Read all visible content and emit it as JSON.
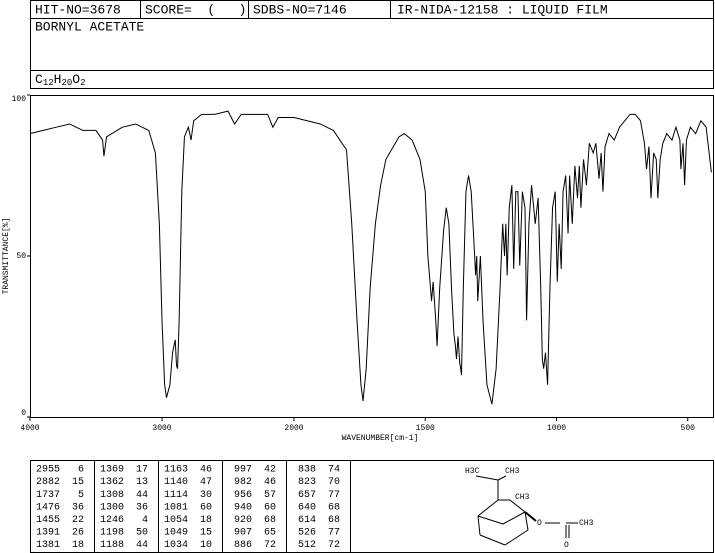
{
  "header": {
    "hit_no": "HIT-NO=3678",
    "score": "SCORE=  (   )",
    "sdbs_no": "SDBS-NO=7146",
    "method": "IR-NIDA-12158 : LIQUID FILM",
    "name": "BORNYL ACETATE",
    "formula": "C12H20O2"
  },
  "chart_data": {
    "type": "line",
    "xlabel": "WAVENUMBER[cm-1]",
    "ylabel": "TRANSMITTANCE[%]",
    "color": "#000000",
    "xlim": [
      4000,
      400
    ],
    "x_break": 2000,
    "xticks": [
      4000,
      3000,
      2000,
      1500,
      1000,
      500
    ],
    "ylim": [
      0,
      100
    ],
    "yticks": [
      0,
      50,
      100
    ],
    "grid": false,
    "x": [
      4000,
      3900,
      3800,
      3700,
      3600,
      3500,
      3450,
      3440,
      3420,
      3300,
      3200,
      3100,
      3050,
      3020,
      3000,
      2980,
      2966,
      2940,
      2920,
      2900,
      2890,
      2882,
      2870,
      2850,
      2830,
      2800,
      2780,
      2760,
      2700,
      2600,
      2500,
      2450,
      2400,
      2300,
      2200,
      2160,
      2120,
      2000,
      1900,
      1850,
      1800,
      1780,
      1760,
      1745,
      1737,
      1725,
      1710,
      1690,
      1670,
      1650,
      1600,
      1580,
      1550,
      1520,
      1500,
      1490,
      1476,
      1470,
      1460,
      1455,
      1445,
      1430,
      1420,
      1410,
      1400,
      1391,
      1385,
      1381,
      1375,
      1369,
      1365,
      1362,
      1355,
      1345,
      1335,
      1325,
      1315,
      1308,
      1304,
      1300,
      1290,
      1280,
      1265,
      1246,
      1230,
      1215,
      1205,
      1198,
      1193,
      1188,
      1180,
      1170,
      1163,
      1155,
      1147,
      1140,
      1130,
      1120,
      1114,
      1105,
      1095,
      1081,
      1070,
      1060,
      1054,
      1049,
      1042,
      1034,
      1025,
      1015,
      1005,
      997,
      990,
      982,
      975,
      965,
      956,
      950,
      940,
      930,
      920,
      913,
      907,
      897,
      886,
      875,
      860,
      850,
      838,
      830,
      823,
      815,
      800,
      780,
      760,
      740,
      720,
      700,
      680,
      665,
      657,
      648,
      640,
      630,
      620,
      614,
      605,
      595,
      580,
      560,
      545,
      530,
      526,
      518,
      512,
      505,
      490,
      470,
      450,
      430,
      410
    ],
    "values": [
      88,
      89,
      90,
      91,
      89,
      89,
      86,
      81,
      87,
      90,
      91,
      89,
      82,
      60,
      30,
      10,
      6,
      10,
      20,
      24,
      16,
      15,
      30,
      70,
      87,
      90,
      86,
      92,
      94,
      94,
      95,
      91,
      94,
      94,
      94,
      90,
      93,
      93,
      91,
      89,
      83,
      60,
      30,
      10,
      5,
      15,
      40,
      60,
      72,
      80,
      87,
      88,
      86,
      80,
      70,
      50,
      36,
      42,
      30,
      22,
      40,
      58,
      65,
      60,
      40,
      26,
      22,
      18,
      25,
      17,
      15,
      13,
      40,
      70,
      75,
      70,
      55,
      44,
      50,
      36,
      50,
      30,
      10,
      4,
      15,
      40,
      60,
      50,
      60,
      44,
      65,
      72,
      46,
      70,
      70,
      47,
      70,
      65,
      30,
      60,
      72,
      60,
      68,
      40,
      18,
      15,
      20,
      10,
      40,
      65,
      70,
      42,
      60,
      46,
      70,
      75,
      57,
      75,
      60,
      78,
      68,
      78,
      65,
      80,
      72,
      85,
      82,
      85,
      74,
      82,
      70,
      84,
      88,
      86,
      90,
      92,
      94,
      94,
      92,
      85,
      77,
      84,
      68,
      82,
      80,
      68,
      80,
      85,
      88,
      86,
      90,
      86,
      77,
      85,
      72,
      86,
      90,
      88,
      92,
      90,
      76
    ]
  },
  "peaks": [
    [
      2955,
      6
    ],
    [
      2882,
      15
    ],
    [
      1737,
      5
    ],
    [
      1476,
      36
    ],
    [
      1455,
      22
    ],
    [
      1391,
      26
    ],
    [
      1381,
      18
    ],
    [
      1369,
      17
    ],
    [
      1362,
      13
    ],
    [
      1308,
      44
    ],
    [
      1300,
      36
    ],
    [
      1246,
      4
    ],
    [
      1198,
      50
    ],
    [
      1188,
      44
    ],
    [
      1163,
      46
    ],
    [
      1140,
      47
    ],
    [
      1114,
      30
    ],
    [
      1081,
      60
    ],
    [
      1054,
      18
    ],
    [
      1049,
      15
    ],
    [
      1034,
      10
    ],
    [
      997,
      42
    ],
    [
      982,
      46
    ],
    [
      956,
      57
    ],
    [
      940,
      60
    ],
    [
      920,
      68
    ],
    [
      907,
      65
    ],
    [
      886,
      72
    ],
    [
      838,
      74
    ],
    [
      823,
      70
    ],
    [
      657,
      77
    ],
    [
      640,
      68
    ],
    [
      614,
      68
    ],
    [
      526,
      77
    ],
    [
      512,
      72
    ]
  ],
  "structure": {
    "labels": [
      "H3C",
      "CH3",
      "CH3",
      "O",
      "O",
      "CH3"
    ]
  }
}
